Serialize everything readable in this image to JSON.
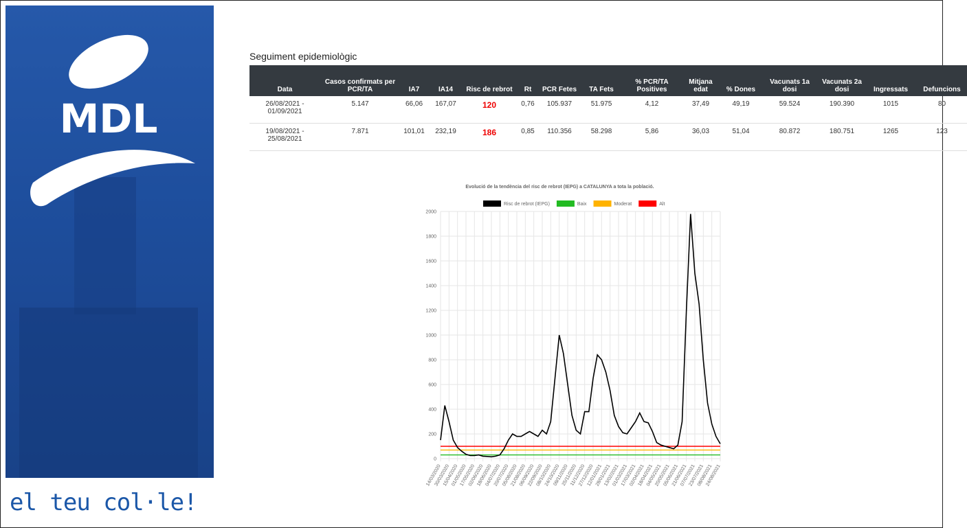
{
  "logo": {
    "text": "MDL"
  },
  "tagline": "el teu col·le!",
  "header": {
    "title": "Seguiment epidemiològic"
  },
  "table": {
    "columns": [
      "Data",
      "Casos confirmats per PCR/TA",
      "IA7",
      "IA14",
      "Risc de rebrot",
      "Rt",
      "PCR Fetes",
      "TA Fets",
      "% PCR/TA Positives",
      "Mitjana edat",
      "% Dones",
      "Vacunats 1a dosi",
      "Vacunats 2a dosi",
      "Ingressats",
      "Defuncions"
    ],
    "rows": [
      [
        "26/08/2021 - 01/09/2021",
        "5.147",
        "66,06",
        "167,07",
        "120",
        "0,76",
        "105.937",
        "51.975",
        "4,12",
        "37,49",
        "49,19",
        "59.524",
        "190.390",
        "1015",
        "80"
      ],
      [
        "19/08/2021 - 25/08/2021",
        "7.871",
        "101,01",
        "232,19",
        "186",
        "0,85",
        "110.356",
        "58.298",
        "5,86",
        "36,03",
        "51,04",
        "80.872",
        "180.751",
        "1265",
        "123"
      ]
    ]
  },
  "chart_data": {
    "type": "line",
    "title": "Evolució de la tendència del risc de rebrot (IEPG) a CATALUNYA a tota la població.",
    "categories": [
      "14/03/2020",
      null,
      "30/03/2020",
      null,
      "15/04/2020",
      null,
      "01/05/2020",
      null,
      "17/05/2020",
      null,
      "02/06/2020",
      null,
      "18/06/2020",
      null,
      "04/07/2020",
      null,
      "20/07/2020",
      null,
      "05/08/2020",
      null,
      "21/08/2020",
      null,
      "06/09/2020",
      null,
      "22/09/2020",
      null,
      "08/10/2020",
      null,
      "24/10/2020",
      null,
      "09/11/2020",
      null,
      "25/11/2020",
      null,
      "11/12/2020",
      null,
      "27/12/2020",
      null,
      "12/01/2021",
      null,
      "28/01/2021",
      null,
      "13/02/2021",
      null,
      "01/03/2021",
      null,
      "17/03/2021",
      null,
      "02/04/2021",
      null,
      "18/04/2021",
      null,
      "04/05/2021",
      null,
      "20/05/2021",
      null,
      "05/06/2021",
      null,
      "21/06/2021",
      null,
      "07/07/2021",
      null,
      "23/07/2021",
      null,
      "08/08/2021",
      null,
      "24/08/2021"
    ],
    "series": [
      {
        "name": "Risc de rebrot (IEPG)",
        "color": "#000000",
        "values": [
          150,
          430,
          300,
          150,
          90,
          60,
          35,
          25,
          25,
          30,
          20,
          18,
          15,
          20,
          30,
          80,
          150,
          200,
          180,
          180,
          200,
          220,
          200,
          180,
          230,
          200,
          300,
          650,
          1000,
          850,
          600,
          350,
          230,
          200,
          380,
          380,
          650,
          840,
          800,
          700,
          550,
          350,
          260,
          210,
          200,
          250,
          300,
          370,
          300,
          290,
          220,
          130,
          110,
          100,
          90,
          80,
          110,
          300,
          1200,
          1980,
          1500,
          1250,
          800,
          450,
          280,
          180,
          120
        ]
      },
      {
        "name": "Baix",
        "color": "#22bb22",
        "values": [
          30,
          30,
          30,
          30,
          30,
          30,
          30,
          30,
          30,
          30,
          30,
          30,
          30,
          30,
          30,
          30,
          30,
          30,
          30,
          30,
          30,
          30,
          30,
          30,
          30,
          30,
          30,
          30,
          30,
          30,
          30,
          30,
          30,
          30,
          30,
          30,
          30,
          30,
          30,
          30,
          30,
          30,
          30,
          30,
          30,
          30,
          30,
          30,
          30,
          30,
          30,
          30,
          30,
          30,
          30,
          30,
          30,
          30,
          30,
          30,
          30,
          30,
          30,
          30,
          30,
          30,
          30
        ]
      },
      {
        "name": "Moderat",
        "color": "#ffb300",
        "values": [
          70,
          70,
          70,
          70,
          70,
          70,
          70,
          70,
          70,
          70,
          70,
          70,
          70,
          70,
          70,
          70,
          70,
          70,
          70,
          70,
          70,
          70,
          70,
          70,
          70,
          70,
          70,
          70,
          70,
          70,
          70,
          70,
          70,
          70,
          70,
          70,
          70,
          70,
          70,
          70,
          70,
          70,
          70,
          70,
          70,
          70,
          70,
          70,
          70,
          70,
          70,
          70,
          70,
          70,
          70,
          70,
          70,
          70,
          70,
          70,
          70,
          70,
          70,
          70,
          70,
          70,
          70
        ]
      },
      {
        "name": "Alt",
        "color": "#ff0000",
        "values": [
          100,
          100,
          100,
          100,
          100,
          100,
          100,
          100,
          100,
          100,
          100,
          100,
          100,
          100,
          100,
          100,
          100,
          100,
          100,
          100,
          100,
          100,
          100,
          100,
          100,
          100,
          100,
          100,
          100,
          100,
          100,
          100,
          100,
          100,
          100,
          100,
          100,
          100,
          100,
          100,
          100,
          100,
          100,
          100,
          100,
          100,
          100,
          100,
          100,
          100,
          100,
          100,
          100,
          100,
          100,
          100,
          100,
          100,
          100,
          100,
          100,
          100,
          100,
          100,
          100,
          100,
          100
        ]
      }
    ],
    "ylim": [
      0,
      2000
    ],
    "yticks": [
      0,
      200,
      400,
      600,
      800,
      1000,
      1200,
      1400,
      1600,
      1800,
      2000
    ],
    "grid": true
  }
}
